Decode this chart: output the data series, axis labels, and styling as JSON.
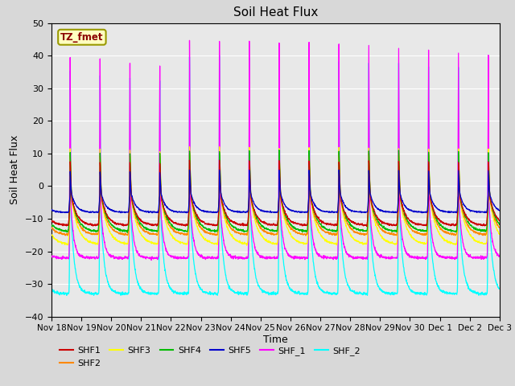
{
  "title": "Soil Heat Flux",
  "xlabel": "Time",
  "ylabel": "Soil Heat Flux",
  "ylim": [
    -40,
    50
  ],
  "yticks": [
    -40,
    -30,
    -20,
    -10,
    0,
    10,
    20,
    30,
    40,
    50
  ],
  "xtick_labels": [
    "Nov 18",
    "Nov 19",
    "Nov 20",
    "Nov 21",
    "Nov 22",
    "Nov 23",
    "Nov 24",
    "Nov 25",
    "Nov 26",
    "Nov 27",
    "Nov 28",
    "Nov 29",
    "Nov 30",
    "Dec 1",
    "Dec 2",
    "Dec 3"
  ],
  "annotation_text": "TZ_fmet",
  "annotation_color": "#8B0000",
  "annotation_bg": "#FFFFC0",
  "annotation_edge": "#999900",
  "series_colors": {
    "SHF1": "#CC0000",
    "SHF2": "#FF8800",
    "SHF3": "#FFFF00",
    "SHF4": "#00BB00",
    "SHF5": "#0000CC",
    "SHF_1": "#FF00FF",
    "SHF_2": "#00FFFF"
  },
  "fig_bg": "#D8D8D8",
  "plot_bg": "#E8E8E8",
  "grid_color": "#FFFFFF",
  "n_days": 15,
  "samples_per_day": 144,
  "legend_row1": [
    "SHF1",
    "SHF2",
    "SHF3",
    "SHF4",
    "SHF5",
    "SHF_1"
  ],
  "legend_row2": [
    "SHF_2"
  ]
}
